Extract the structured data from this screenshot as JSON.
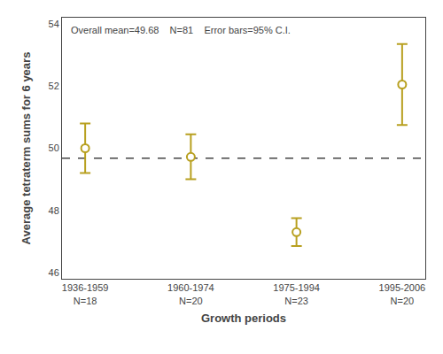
{
  "chart_data": {
    "type": "errorbar",
    "categories": [
      "1936-1959\nN=18",
      "1960-1974\nN=20",
      "1975-1994\nN=23",
      "1995-2006\nN=20"
    ],
    "values": [
      50.0,
      49.72,
      47.3,
      52.05
    ],
    "ci_lower": [
      49.2,
      49.0,
      46.85,
      50.75
    ],
    "ci_upper": [
      50.8,
      50.45,
      47.75,
      53.35
    ],
    "color": "#b8a020",
    "marker": "circle",
    "reference_line": {
      "value": 49.68,
      "color": "#444444",
      "line_style": "dashed"
    },
    "annotation": "Overall mean=49.68    N=81    Error bars=95% C.I.",
    "xlabel": "Growth periods",
    "ylabel": "Average tetraterm sums for 6 years",
    "ylim": [
      45.8,
      54.2
    ],
    "yticks": [
      46,
      48,
      50,
      52,
      54
    ],
    "grid": false
  }
}
